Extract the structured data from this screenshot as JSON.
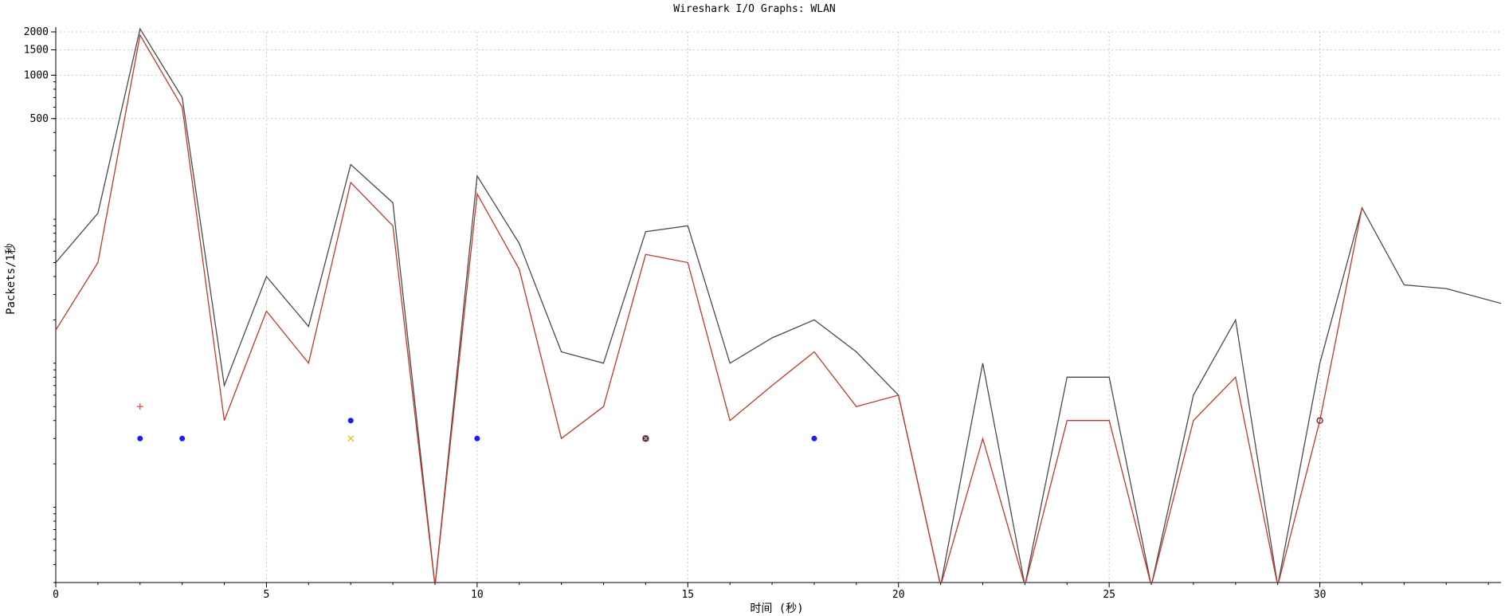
{
  "chart_data": {
    "type": "line",
    "title": "Wireshark I/O Graphs: WLAN",
    "xlabel": "时间 (秒)",
    "ylabel": "Packets/1秒",
    "xlim": [
      0,
      34.3
    ],
    "ylim": [
      0.3,
      2000
    ],
    "yscale": "log",
    "grid": true,
    "x_ticks": [
      0,
      5,
      10,
      15,
      20,
      25,
      30
    ],
    "y_ticks": [
      500,
      1000,
      1500,
      2000
    ],
    "series": [
      {
        "color": "#4a4a4a",
        "style": "line",
        "x": [
          0,
          1,
          2,
          3,
          4,
          5,
          6,
          7,
          8,
          9,
          10,
          11,
          12,
          13,
          14,
          15,
          16,
          17,
          18,
          19,
          20,
          21,
          22,
          23,
          24,
          25,
          26,
          27,
          28,
          29,
          30,
          31,
          32,
          33,
          34.3
        ],
        "values": [
          50,
          110,
          2100,
          700,
          7,
          40,
          18,
          240,
          130,
          0.05,
          200,
          68,
          12,
          10,
          82,
          90,
          10,
          15,
          20,
          12,
          6,
          0.05,
          10,
          0.05,
          8,
          8,
          0.05,
          6,
          20,
          0.05,
          10,
          120,
          35,
          33,
          26
        ]
      },
      {
        "color": "#c0392b",
        "style": "line",
        "x": [
          0,
          1,
          2,
          3,
          4,
          5,
          6,
          7,
          8,
          9,
          10,
          11,
          12,
          13,
          14,
          15,
          16,
          17,
          18,
          19,
          20,
          21,
          22,
          23,
          24,
          25,
          26,
          27,
          28,
          29,
          30,
          31
        ],
        "values": [
          17,
          50,
          1900,
          600,
          4,
          23,
          10,
          180,
          90,
          0.05,
          150,
          45,
          3,
          5,
          57,
          50,
          4,
          7,
          12,
          5,
          6,
          0.05,
          3,
          0.05,
          4,
          4,
          0.05,
          4,
          8,
          0.05,
          4,
          120
        ]
      },
      {
        "color": "#e74c3c",
        "style": "plus",
        "x": [
          2
        ],
        "values": [
          5
        ]
      },
      {
        "color": "#1a1aff",
        "style": "dot",
        "x": [
          2,
          3,
          7,
          10,
          14,
          18
        ],
        "values": [
          3,
          3,
          4,
          3,
          3,
          3
        ]
      },
      {
        "color": "#e8c200",
        "style": "cross",
        "x": [
          7,
          14
        ],
        "values": [
          3,
          3
        ]
      },
      {
        "color": "#7a1a1a",
        "style": "circle",
        "x": [
          14,
          30
        ],
        "values": [
          3,
          4
        ]
      }
    ]
  }
}
